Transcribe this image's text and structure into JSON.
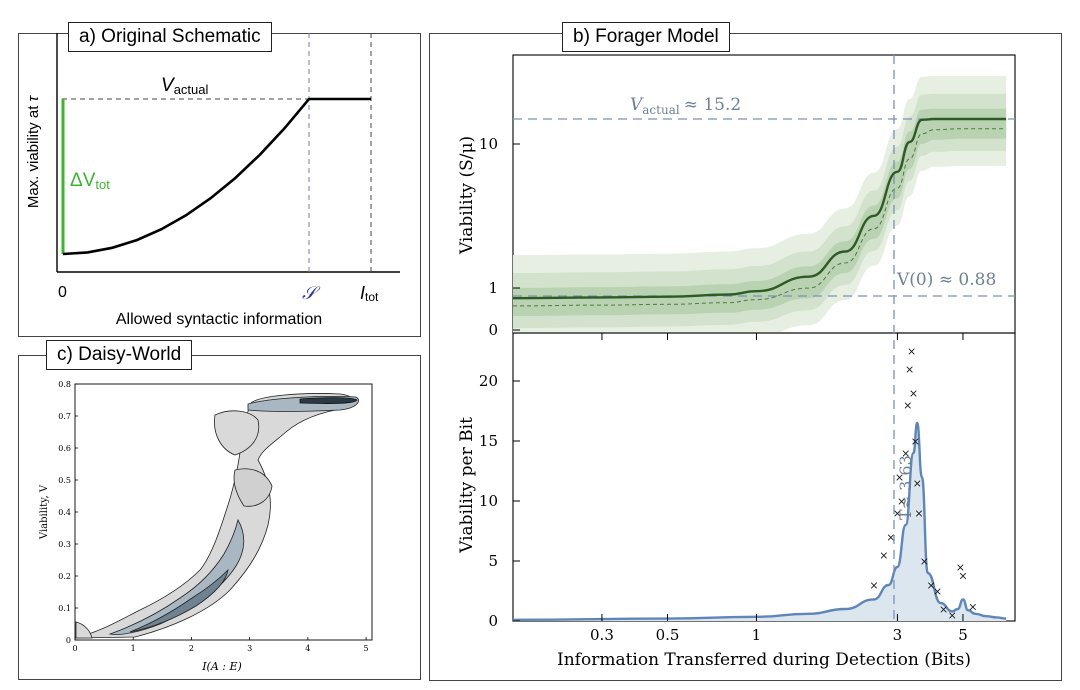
{
  "panels": {
    "a_title": "a) Original Schematic",
    "b_title": "b) Forager Model",
    "c_title": "c) Daisy-World"
  },
  "chart_data": [
    {
      "id": "a",
      "type": "line",
      "xlabel": "Allowed syntactic information",
      "ylabel_text": "Max. viability at",
      "ylabel_symbol": "τ",
      "xtick_labels": {
        "zero": "0",
        "S": "𝒮",
        "Itot_main": "I",
        "Itot_sub": "tot"
      },
      "annotations": {
        "vactual_main": "V",
        "vactual_sub": "actual",
        "delta_main": "ΔV",
        "delta_sub": "tot"
      },
      "curve": {
        "x": [
          0,
          0.1,
          0.2,
          0.3,
          0.4,
          0.5,
          0.6,
          0.7,
          0.8,
          0.9,
          1.0,
          1.2
        ],
        "y": [
          0,
          0.01,
          0.04,
          0.09,
          0.16,
          0.25,
          0.36,
          0.49,
          0.64,
          0.81,
          1.0,
          1.0
        ]
      },
      "colors": {
        "curve": "#000000",
        "delta": "#3cb531",
        "dashed": "#6b7fb0"
      }
    },
    {
      "id": "b_top",
      "type": "line",
      "ylabel": "Viability (S/μ)",
      "yscale": "log",
      "yticks": [
        "0",
        "1",
        "10"
      ],
      "annotations": {
        "vactual_main": "V",
        "vactual_sub": "actual",
        "vactual_val": "≈ 15.2",
        "v0": "V(0) ≈ 0.88"
      },
      "x": [
        0.15,
        0.3,
        0.5,
        0.8,
        1.0,
        1.5,
        2.0,
        2.5,
        3.0,
        3.3,
        3.63,
        4.0,
        5.0,
        7.0
      ],
      "median": [
        0.85,
        0.86,
        0.87,
        0.9,
        0.95,
        1.2,
        1.8,
        3.2,
        6.5,
        10.5,
        15.0,
        15.2,
        15.2,
        15.2
      ],
      "lower": [
        0.75,
        0.76,
        0.77,
        0.79,
        0.83,
        1.0,
        1.5,
        2.6,
        5.0,
        8.0,
        12.0,
        12.8,
        13.0,
        13.0
      ],
      "colors": {
        "median": "#2f5a26",
        "band": "#dbe8d6",
        "dashed": "#7a92b8"
      }
    },
    {
      "id": "b_bottom",
      "type": "area",
      "xlabel": "Information Transferred during Detection (Bits)",
      "ylabel": "Viability per Bit",
      "xscale": "log",
      "xticks": [
        "0.3",
        "0.5",
        "1",
        "3",
        "5"
      ],
      "yticks": [
        "0",
        "5",
        "10",
        "15",
        "20"
      ],
      "ylim": [
        0,
        23
      ],
      "annotation": "T≈ 3.63",
      "x": [
        0.15,
        0.5,
        1.0,
        1.5,
        2.0,
        2.5,
        2.8,
        3.0,
        3.2,
        3.4,
        3.5,
        3.63,
        3.8,
        4.2,
        4.6,
        4.8,
        5.0,
        5.2,
        5.5,
        6.0,
        6.5,
        7.0
      ],
      "y": [
        0.1,
        0.2,
        0.35,
        0.6,
        1.0,
        1.8,
        3.0,
        4.5,
        8.0,
        14.0,
        16.5,
        12.0,
        4.0,
        1.5,
        0.8,
        1.0,
        1.8,
        0.9,
        0.6,
        0.4,
        0.3,
        0.2
      ],
      "scatter_x": [
        2.5,
        2.7,
        2.85,
        3.0,
        3.05,
        3.1,
        3.2,
        3.25,
        3.3,
        3.35,
        3.4,
        3.45,
        3.5,
        3.55,
        3.7,
        3.9,
        4.1,
        4.3,
        4.6,
        4.9,
        5.0,
        5.4
      ],
      "scatter_y": [
        3.0,
        5.5,
        7.0,
        9.0,
        12.0,
        10.0,
        14.0,
        18.0,
        21.0,
        22.5,
        19.0,
        15.0,
        11.5,
        9.0,
        5.0,
        3.0,
        2.5,
        1.0,
        0.5,
        4.5,
        3.8,
        1.2
      ],
      "colors": {
        "line": "#5f86b8",
        "fill": "#dce6ef",
        "scatter": "#111111",
        "dashed": "#7a92b8"
      }
    },
    {
      "id": "c",
      "type": "heatmap",
      "xlabel": "I(A : E)",
      "ylabel": "Viability, V",
      "xticks": [
        "0",
        "1",
        "2",
        "3",
        "4",
        "5"
      ],
      "yticks": [
        "0",
        "0.1",
        "0.2",
        "0.3",
        "0.4",
        "0.5",
        "0.6",
        "0.7",
        "0.8"
      ],
      "colors": {
        "outer": "#d9d9d9",
        "mid": "#a9b7c2",
        "inner": "#6e8292",
        "core": "#2a3a44"
      }
    }
  ]
}
